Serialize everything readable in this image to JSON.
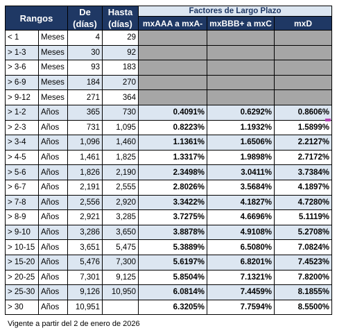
{
  "header": {
    "rangos": "Rangos",
    "de_line1": "De",
    "de_line2": "(días)",
    "hasta_line1": "Hasta",
    "hasta_line2": "(días)",
    "factores": "Factores de Largo Plazo",
    "col1": "mxAAA a mxA-",
    "col2": "mxBBB+ a mxC",
    "col3": "mxD"
  },
  "rows": [
    {
      "rango": "< 1",
      "unidad": "Meses",
      "de": "4",
      "hasta": "29",
      "f1": "",
      "f2": "",
      "f3": ""
    },
    {
      "rango": "> 1-3",
      "unidad": "Meses",
      "de": "30",
      "hasta": "92",
      "f1": "",
      "f2": "",
      "f3": ""
    },
    {
      "rango": "> 3-6",
      "unidad": "Meses",
      "de": "93",
      "hasta": "183",
      "f1": "",
      "f2": "",
      "f3": ""
    },
    {
      "rango": "> 6-9",
      "unidad": "Meses",
      "de": "184",
      "hasta": "270",
      "f1": "",
      "f2": "",
      "f3": ""
    },
    {
      "rango": "> 9-12",
      "unidad": "Meses",
      "de": "271",
      "hasta": "364",
      "f1": "",
      "f2": "",
      "f3": ""
    },
    {
      "rango": "> 1-2",
      "unidad": "Años",
      "de": "365",
      "hasta": "730",
      "f1": "0.4091%",
      "f2": "0.6292%",
      "f3": "0.8606%"
    },
    {
      "rango": "> 2-3",
      "unidad": "Años",
      "de": "731",
      "hasta": "1,095",
      "f1": "0.8223%",
      "f2": "1.1932%",
      "f3": "1.5899%"
    },
    {
      "rango": "> 3-4",
      "unidad": "Años",
      "de": "1,096",
      "hasta": "1,460",
      "f1": "1.1361%",
      "f2": "1.6506%",
      "f3": "2.2127%"
    },
    {
      "rango": "> 4-5",
      "unidad": "Años",
      "de": "1,461",
      "hasta": "1,825",
      "f1": "1.3317%",
      "f2": "1.9898%",
      "f3": "2.7172%"
    },
    {
      "rango": "> 5-6",
      "unidad": "Años",
      "de": "1,826",
      "hasta": "2,190",
      "f1": "2.3498%",
      "f2": "3.0411%",
      "f3": "3.7384%"
    },
    {
      "rango": "> 6-7",
      "unidad": "Años",
      "de": "2,191",
      "hasta": "2,555",
      "f1": "2.8026%",
      "f2": "3.5684%",
      "f3": "4.1897%"
    },
    {
      "rango": "> 7-8",
      "unidad": "Años",
      "de": "2,556",
      "hasta": "2,920",
      "f1": "3.3422%",
      "f2": "4.1827%",
      "f3": "4.7280%"
    },
    {
      "rango": "> 8-9",
      "unidad": "Años",
      "de": "2,921",
      "hasta": "3,285",
      "f1": "3.7275%",
      "f2": "4.6696%",
      "f3": "5.1119%"
    },
    {
      "rango": "> 9-10",
      "unidad": "Años",
      "de": "3,286",
      "hasta": "3,650",
      "f1": "3.8878%",
      "f2": "4.9108%",
      "f3": "5.2708%"
    },
    {
      "rango": "> 10-15",
      "unidad": "Años",
      "de": "3,651",
      "hasta": "5,475",
      "f1": "5.3889%",
      "f2": "6.5080%",
      "f3": "7.0824%"
    },
    {
      "rango": "> 15-20",
      "unidad": "Años",
      "de": "5,476",
      "hasta": "7,300",
      "f1": "5.6197%",
      "f2": "6.8201%",
      "f3": "7.4523%"
    },
    {
      "rango": "> 20-25",
      "unidad": "Años",
      "de": "7,301",
      "hasta": "9,125",
      "f1": "5.8504%",
      "f2": "7.1321%",
      "f3": "7.8200%"
    },
    {
      "rango": "> 25-30",
      "unidad": "Años",
      "de": "9,126",
      "hasta": "10,950",
      "f1": "6.0814%",
      "f2": "7.4459%",
      "f3": "8.1855%"
    },
    {
      "rango": "> 30",
      "unidad": "Años",
      "de": "10,951",
      "hasta": "",
      "f1": "6.3205%",
      "f2": "7.7594%",
      "f3": "8.5500%"
    }
  ],
  "footnote": "Vigente a partir del 2 de enero de 2026",
  "colors": {
    "header_bg": "#1f3864",
    "light_band": "#dce6f1",
    "gray_cell": "#a6a6a6",
    "marker": "#b03fb0"
  }
}
